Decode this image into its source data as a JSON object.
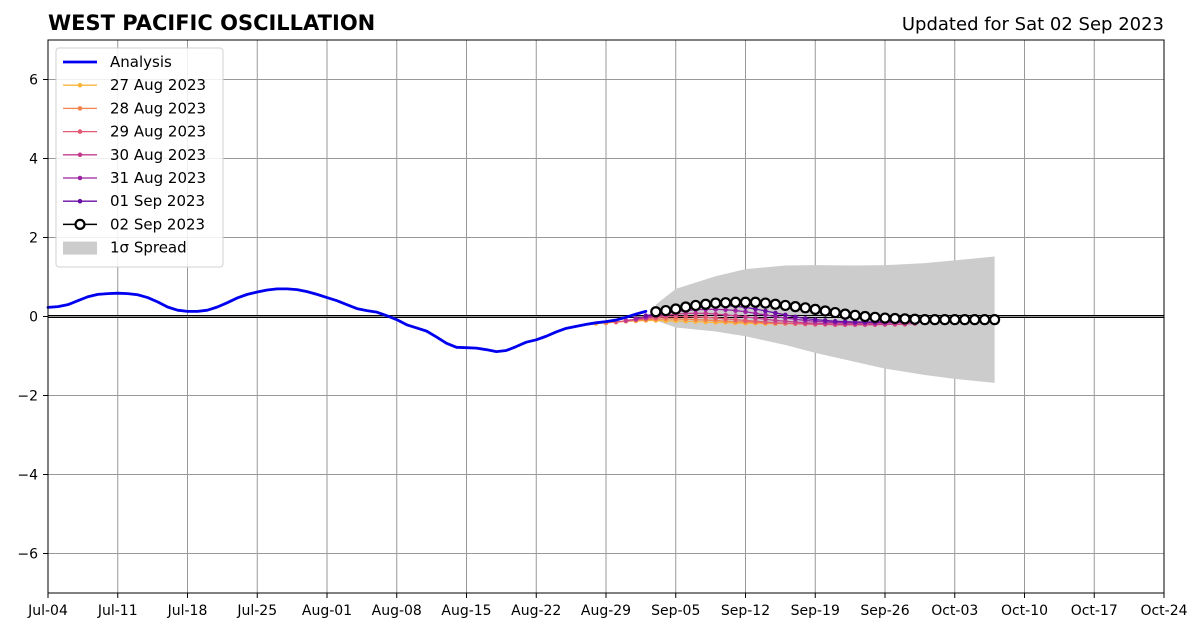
{
  "chart_data": {
    "type": "line",
    "title": "WEST PACIFIC OSCILLATION",
    "subtitle": "Updated for Sat 02 Sep 2023",
    "xlabel": "",
    "ylabel": "",
    "x_axis": {
      "start": "2023-07-04",
      "end": "2023-10-24",
      "tick_labels": [
        "Jul-04",
        "Jul-11",
        "Jul-18",
        "Jul-25",
        "Aug-01",
        "Aug-08",
        "Aug-15",
        "Aug-22",
        "Aug-29",
        "Sep-05",
        "Sep-12",
        "Sep-19",
        "Sep-26",
        "Oct-03",
        "Oct-10",
        "Oct-17",
        "Oct-24"
      ]
    },
    "ylim": [
      -7,
      7
    ],
    "y_ticks": [
      -6,
      -4,
      -2,
      0,
      2,
      4,
      6
    ],
    "y_tick_labels": [
      "−6",
      "−4",
      "−2",
      "0",
      "2",
      "4",
      "6"
    ],
    "grid": true,
    "legend_position": "upper-left",
    "analysis": {
      "name": "Analysis",
      "color": "#0000ee",
      "x": [
        "2023-07-04",
        "2023-07-05",
        "2023-07-06",
        "2023-07-07",
        "2023-07-08",
        "2023-07-09",
        "2023-07-10",
        "2023-07-11",
        "2023-07-12",
        "2023-07-13",
        "2023-07-14",
        "2023-07-15",
        "2023-07-16",
        "2023-07-17",
        "2023-07-18",
        "2023-07-19",
        "2023-07-20",
        "2023-07-21",
        "2023-07-22",
        "2023-07-23",
        "2023-07-24",
        "2023-07-25",
        "2023-07-26",
        "2023-07-27",
        "2023-07-28",
        "2023-07-29",
        "2023-07-30",
        "2023-07-31",
        "2023-08-01",
        "2023-08-02",
        "2023-08-03",
        "2023-08-04",
        "2023-08-05",
        "2023-08-06",
        "2023-08-07",
        "2023-08-08",
        "2023-08-09",
        "2023-08-10",
        "2023-08-11",
        "2023-08-12",
        "2023-08-13",
        "2023-08-14",
        "2023-08-15",
        "2023-08-16",
        "2023-08-17",
        "2023-08-18",
        "2023-08-19",
        "2023-08-20",
        "2023-08-21",
        "2023-08-22",
        "2023-08-23",
        "2023-08-24",
        "2023-08-25",
        "2023-08-26",
        "2023-08-27",
        "2023-08-28",
        "2023-08-29",
        "2023-08-30",
        "2023-08-31",
        "2023-09-01",
        "2023-09-02"
      ],
      "y": [
        0.23,
        0.25,
        0.3,
        0.4,
        0.5,
        0.56,
        0.58,
        0.59,
        0.58,
        0.55,
        0.48,
        0.37,
        0.24,
        0.16,
        0.13,
        0.13,
        0.16,
        0.24,
        0.35,
        0.47,
        0.56,
        0.62,
        0.67,
        0.7,
        0.7,
        0.68,
        0.63,
        0.56,
        0.48,
        0.4,
        0.3,
        0.2,
        0.15,
        0.11,
        0.02,
        -0.08,
        -0.21,
        -0.29,
        -0.37,
        -0.52,
        -0.68,
        -0.78,
        -0.79,
        -0.8,
        -0.84,
        -0.89,
        -0.86,
        -0.76,
        -0.65,
        -0.59,
        -0.5,
        -0.39,
        -0.3,
        -0.25,
        -0.2,
        -0.16,
        -0.13,
        -0.09,
        -0.02,
        0.06,
        0.13
      ]
    },
    "forecasts": [
      {
        "name": "27 Aug 2023",
        "color": "#fcb43d",
        "start": "2023-08-28",
        "y": [
          -0.18,
          -0.16,
          -0.14,
          -0.12,
          -0.11,
          -0.1,
          -0.1,
          -0.11,
          -0.11,
          -0.12,
          -0.13,
          -0.14,
          -0.15,
          -0.15,
          -0.16,
          -0.17,
          -0.17,
          -0.18,
          -0.18,
          -0.18,
          -0.18,
          -0.19,
          -0.19,
          -0.19,
          -0.19,
          -0.19,
          -0.19,
          -0.19,
          -0.19,
          -0.19
        ]
      },
      {
        "name": "28 Aug 2023",
        "color": "#f3834a",
        "start": "2023-08-29",
        "y": [
          -0.16,
          -0.14,
          -0.12,
          -0.1,
          -0.08,
          -0.07,
          -0.06,
          -0.06,
          -0.07,
          -0.08,
          -0.09,
          -0.1,
          -0.12,
          -0.13,
          -0.14,
          -0.15,
          -0.16,
          -0.17,
          -0.17,
          -0.18,
          -0.18,
          -0.19,
          -0.19,
          -0.2,
          -0.2,
          -0.2,
          -0.2,
          -0.2,
          -0.2,
          -0.2
        ]
      },
      {
        "name": "29 Aug 2023",
        "color": "#e45971",
        "start": "2023-08-30",
        "y": [
          -0.14,
          -0.11,
          -0.08,
          -0.05,
          -0.03,
          -0.01,
          0.0,
          0.0,
          -0.01,
          -0.02,
          -0.04,
          -0.06,
          -0.08,
          -0.1,
          -0.12,
          -0.14,
          -0.16,
          -0.17,
          -0.18,
          -0.19,
          -0.2,
          -0.2,
          -0.21,
          -0.21,
          -0.21,
          -0.21,
          -0.21,
          -0.2,
          -0.2,
          -0.2
        ]
      },
      {
        "name": "30 Aug 2023",
        "color": "#c43c8e",
        "start": "2023-08-31",
        "y": [
          -0.1,
          -0.07,
          -0.04,
          0.0,
          0.03,
          0.06,
          0.08,
          0.08,
          0.08,
          0.06,
          0.04,
          0.02,
          -0.01,
          -0.04,
          -0.07,
          -0.1,
          -0.12,
          -0.14,
          -0.16,
          -0.17,
          -0.18,
          -0.19,
          -0.2,
          -0.2,
          -0.2,
          -0.2,
          -0.2,
          -0.19,
          -0.19,
          -0.18
        ]
      },
      {
        "name": "31 Aug 2023",
        "color": "#9b22a3",
        "start": "2023-09-01",
        "y": [
          -0.05,
          -0.01,
          0.03,
          0.08,
          0.12,
          0.15,
          0.17,
          0.18,
          0.18,
          0.17,
          0.15,
          0.12,
          0.08,
          0.04,
          0.0,
          -0.04,
          -0.07,
          -0.1,
          -0.12,
          -0.14,
          -0.15,
          -0.16,
          -0.16,
          -0.16,
          -0.16,
          -0.16,
          -0.15,
          -0.15,
          -0.14,
          -0.14
        ]
      },
      {
        "name": "01 Sep 2023",
        "color": "#6a0ea5",
        "start": "2023-09-02",
        "y": [
          0.02,
          0.07,
          0.12,
          0.17,
          0.22,
          0.25,
          0.27,
          0.28,
          0.28,
          0.26,
          0.23,
          0.19,
          0.14,
          0.09,
          0.04,
          -0.01,
          -0.05,
          -0.08,
          -0.1,
          -0.12,
          -0.13,
          -0.14,
          -0.14,
          -0.14,
          -0.13,
          -0.13,
          -0.12,
          -0.12,
          -0.11,
          -0.11
        ]
      }
    ],
    "current_forecast": {
      "name": "02 Sep 2023",
      "color": "#000000",
      "start": "2023-09-03",
      "y": [
        0.12,
        0.15,
        0.19,
        0.24,
        0.28,
        0.31,
        0.34,
        0.35,
        0.36,
        0.36,
        0.36,
        0.34,
        0.31,
        0.28,
        0.25,
        0.22,
        0.18,
        0.14,
        0.1,
        0.06,
        0.03,
        0.0,
        -0.02,
        -0.04,
        -0.05,
        -0.06,
        -0.07,
        -0.08,
        -0.08,
        -0.08,
        -0.08,
        -0.08,
        -0.08,
        -0.08,
        -0.08
      ]
    },
    "spread": {
      "name": "1σ Spread",
      "color": "#cccccc",
      "start": "2023-09-03",
      "end": "2023-10-07",
      "points": [
        {
          "x": "2023-09-03",
          "lower": -0.1,
          "upper": 0.3
        },
        {
          "x": "2023-09-05",
          "lower": -0.28,
          "upper": 0.7
        },
        {
          "x": "2023-09-09",
          "lower": -0.38,
          "upper": 1.02
        },
        {
          "x": "2023-09-12",
          "lower": -0.5,
          "upper": 1.2
        },
        {
          "x": "2023-09-16",
          "lower": -0.72,
          "upper": 1.29
        },
        {
          "x": "2023-09-19",
          "lower": -0.92,
          "upper": 1.3
        },
        {
          "x": "2023-09-23",
          "lower": -1.15,
          "upper": 1.29
        },
        {
          "x": "2023-09-26",
          "lower": -1.32,
          "upper": 1.3
        },
        {
          "x": "2023-09-30",
          "lower": -1.48,
          "upper": 1.35
        },
        {
          "x": "2023-10-03",
          "lower": -1.58,
          "upper": 1.42
        },
        {
          "x": "2023-10-07",
          "lower": -1.68,
          "upper": 1.52
        }
      ]
    }
  }
}
